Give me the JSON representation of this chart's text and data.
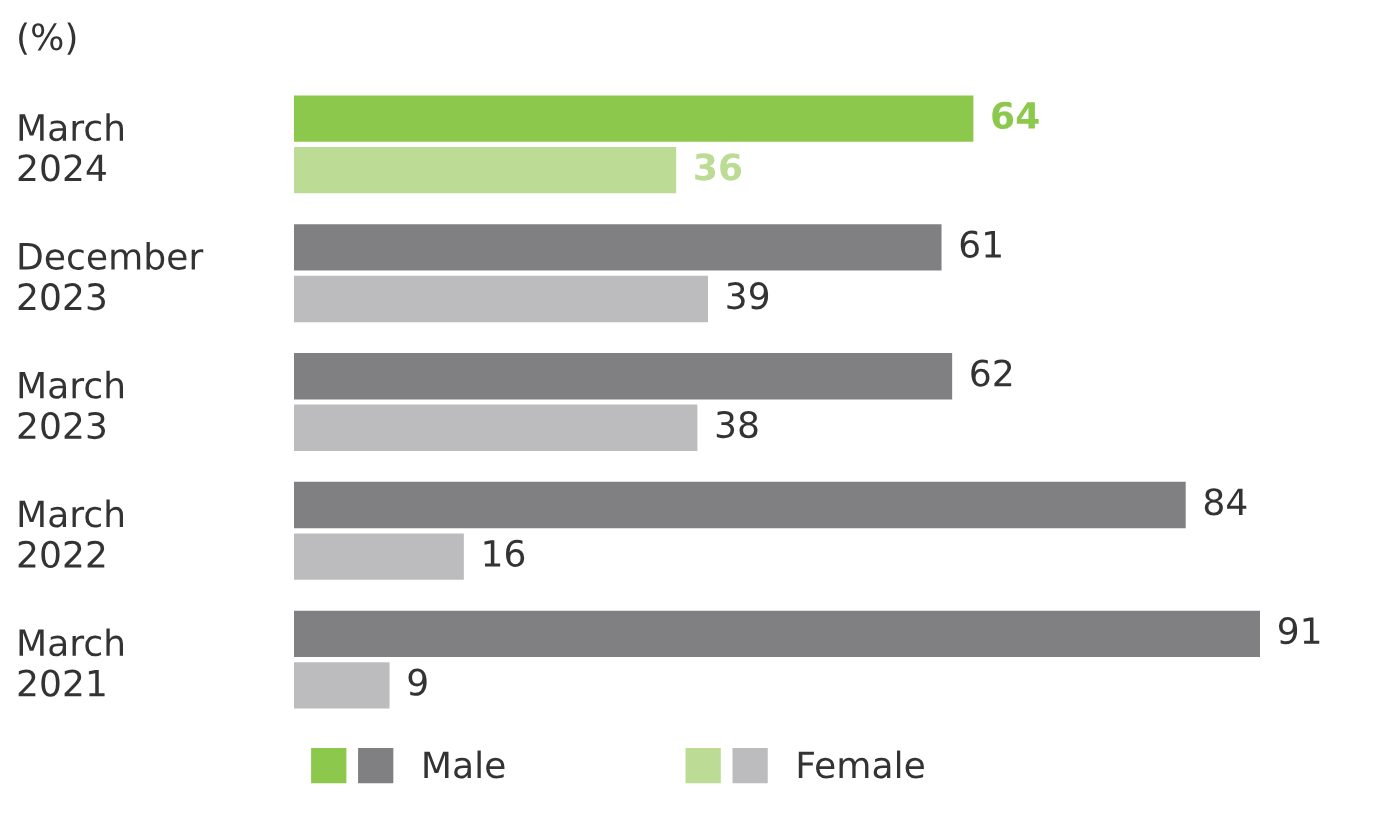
{
  "chart_data": {
    "type": "bar",
    "orientation": "horizontal",
    "subtitle": "(%)",
    "categories": [
      "March\n2024",
      "December\n2023",
      "March\n2023",
      "March\n2022",
      "March\n2021"
    ],
    "series": [
      {
        "name": "Male",
        "colors": [
          "#8cc84b",
          "#808083",
          "#808083",
          "#808083",
          "#808083"
        ],
        "values": [
          64,
          61,
          62,
          84,
          91
        ]
      },
      {
        "name": "Female",
        "colors": [
          "#bcdc96",
          "#bcbcbe",
          "#bcbcbe",
          "#bcbcbe",
          "#bcbcbe"
        ],
        "values": [
          36,
          39,
          38,
          16,
          9
        ]
      }
    ],
    "data_labels": true,
    "legend": "bottom",
    "grid": false
  }
}
